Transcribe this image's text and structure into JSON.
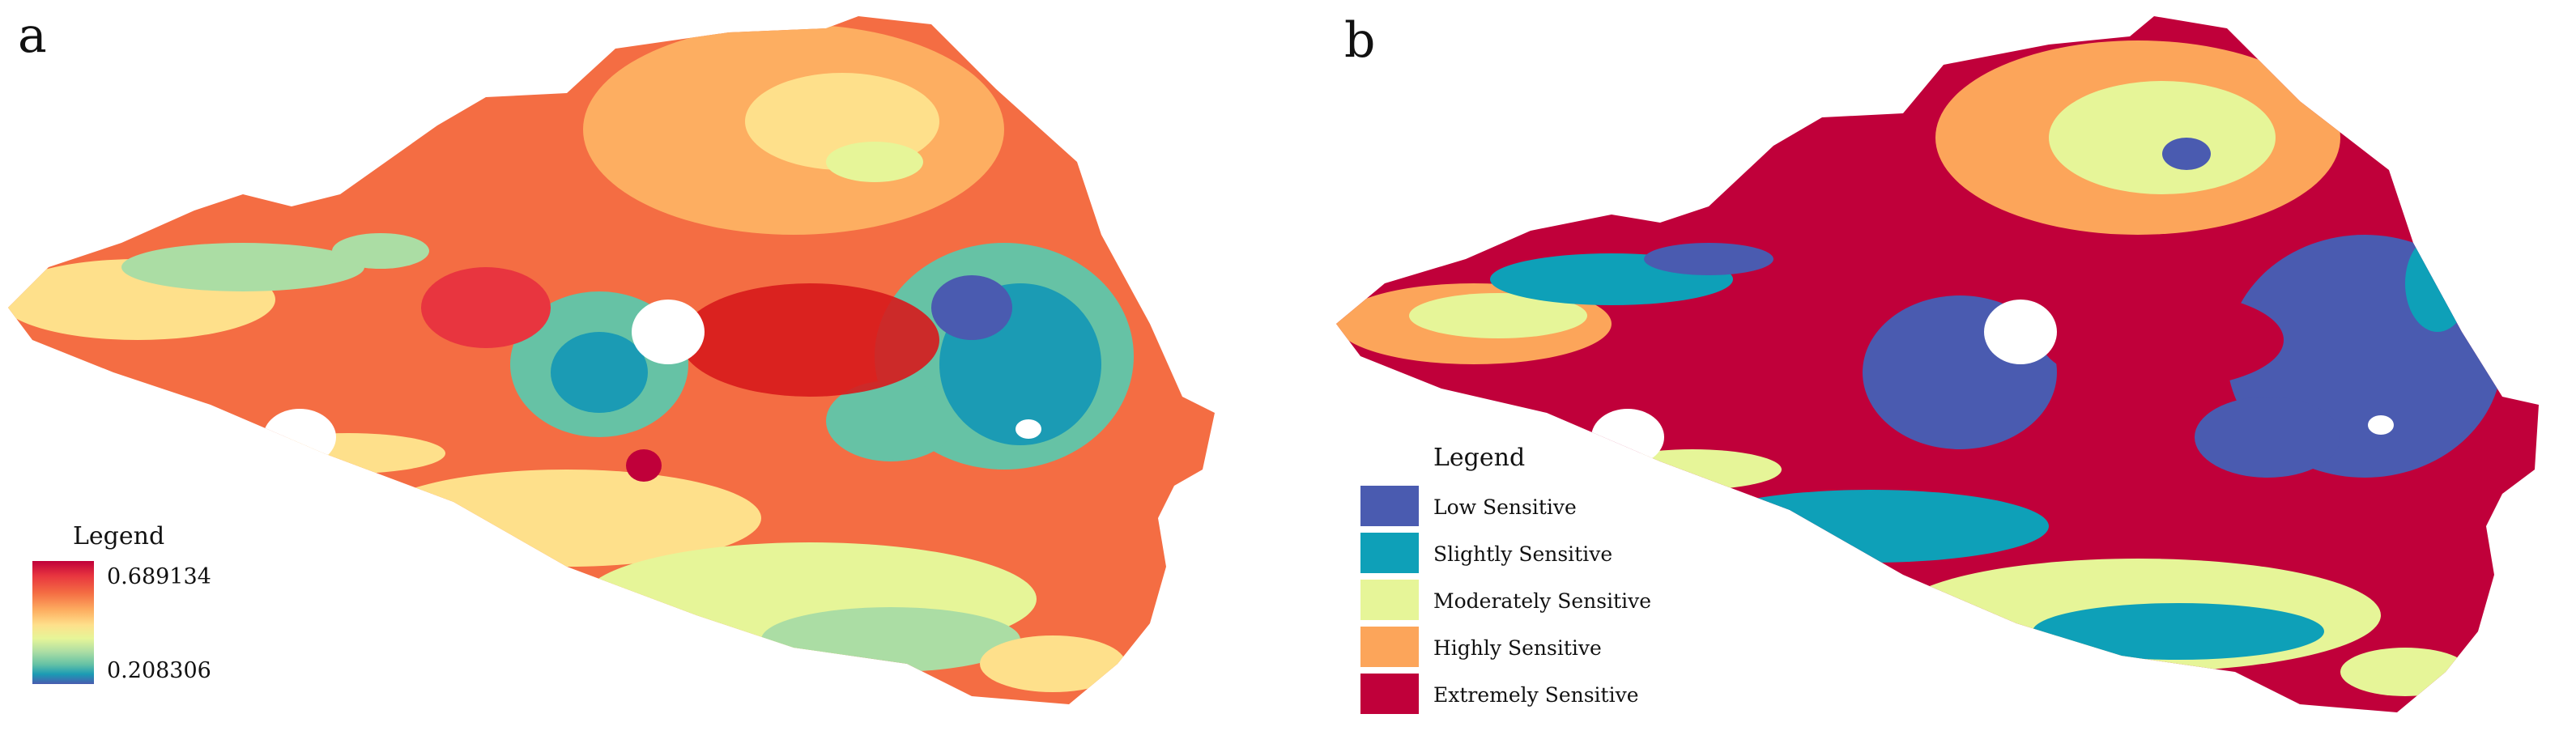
{
  "panels": [
    {
      "letter": "a",
      "legend": {
        "title": "Legend",
        "max": "0.689134",
        "min": "0.208306",
        "ramp_colors": [
          "#c0003a",
          "#f46d43",
          "#fdae61",
          "#fee08b",
          "#e6f598",
          "#abdda4",
          "#66c2a5",
          "#1b9bb4",
          "#4a5bb0"
        ]
      }
    },
    {
      "letter": "b",
      "legend": {
        "title": "Legend",
        "items": [
          {
            "label": "Low Sensitive",
            "color": "#4a5bb0"
          },
          {
            "label": "Slightly Sensitive",
            "color": "#0ea0b8"
          },
          {
            "label": "Moderately Sensitive",
            "color": "#e6f598"
          },
          {
            "label": "Highly Sensitive",
            "color": "#fca55a"
          },
          {
            "label": "Extremely Sensitive",
            "color": "#c0003a"
          }
        ]
      }
    }
  ]
}
